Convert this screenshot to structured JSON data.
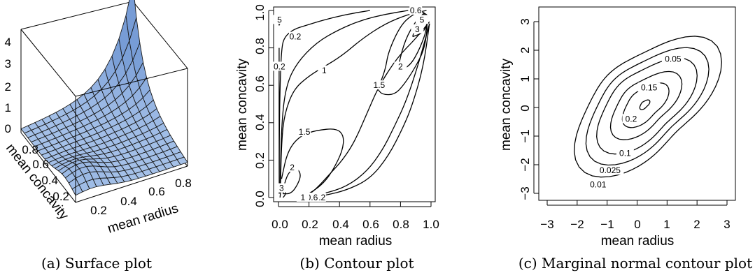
{
  "captions": {
    "a": "(a) Surface plot",
    "b": "(b) Contour plot",
    "c": "(c) Marginal normal contour plot"
  },
  "chart_data": [
    {
      "type": "surface",
      "xlabel": "mean radius",
      "ylabel": "mean concavity",
      "x_ticks": [
        "0.2",
        "0.4",
        "0.6",
        "0.8"
      ],
      "y_ticks": [
        "0.2",
        "0.4",
        "0.6",
        "0.8"
      ],
      "z_ticks": [
        "0",
        "1",
        "2",
        "3",
        "4"
      ],
      "zlim": [
        0,
        4.5
      ],
      "surface_color": "#a9c4ea",
      "edge_color": "#1a1a1a"
    },
    {
      "type": "contour",
      "xlabel": "mean radius",
      "ylabel": "mean concavity",
      "xlim": [
        0,
        1
      ],
      "ylim": [
        0,
        1
      ],
      "x_ticks": [
        "0.0",
        "0.2",
        "0.4",
        "0.6",
        "0.8",
        "1.0"
      ],
      "y_ticks": [
        "0.0",
        "0.2",
        "0.4",
        "0.6",
        "0.8",
        "1.0"
      ],
      "levels": [
        {
          "level": "0.2",
          "points": [
            [
              0.005,
              0.02
            ],
            [
              0.005,
              0.3
            ],
            [
              0.01,
              0.6
            ],
            [
              0.02,
              0.8
            ],
            [
              0.04,
              0.86
            ],
            [
              0.1,
              0.9
            ],
            [
              0.18,
              0.92
            ],
            [
              0.3,
              0.95
            ],
            [
              0.45,
              0.98
            ],
            [
              0.6,
              1.0
            ]
          ],
          "label": "0.2",
          "label_at": [
            0.11,
            0.86
          ]
        },
        {
          "level": "0.2",
          "points": [
            [
              0.005,
              0.04
            ],
            [
              0.004,
              0.3
            ],
            [
              0.004,
              0.6
            ],
            [
              0.004,
              0.8
            ]
          ],
          "label": "0.2",
          "label_at": [
            0.006,
            0.7
          ]
        },
        {
          "level": "0.2",
          "points": [
            [
              0.2,
              0.0
            ],
            [
              0.3,
              0.01
            ],
            [
              0.45,
              0.04
            ],
            [
              0.6,
              0.1
            ],
            [
              0.72,
              0.22
            ],
            [
              0.82,
              0.38
            ],
            [
              0.88,
              0.5
            ],
            [
              0.95,
              0.7
            ],
            [
              0.99,
              0.93
            ]
          ],
          "label": "0.2",
          "label_at": [
            0.27,
            0.0
          ]
        },
        {
          "level": "0.6",
          "points": [
            [
              0.01,
              0.05
            ],
            [
              0.02,
              0.4
            ],
            [
              0.05,
              0.6
            ],
            [
              0.12,
              0.72
            ],
            [
              0.25,
              0.83
            ],
            [
              0.4,
              0.9
            ],
            [
              0.55,
              0.95
            ],
            [
              0.7,
              0.98
            ],
            [
              0.85,
              1.0
            ]
          ],
          "label": "0.6",
          "label_at": [
            0.9,
            1.0
          ]
        },
        {
          "level": "0.6",
          "points": [
            [
              0.16,
              0.0
            ],
            [
              0.3,
              0.02
            ],
            [
              0.45,
              0.06
            ],
            [
              0.58,
              0.14
            ],
            [
              0.68,
              0.25
            ],
            [
              0.76,
              0.38
            ],
            [
              0.84,
              0.52
            ],
            [
              0.92,
              0.72
            ],
            [
              0.99,
              0.93
            ]
          ],
          "label": "0.6",
          "label_at": [
            0.22,
            0.0
          ]
        },
        {
          "level": "1",
          "points": [
            [
              0.013,
              0.06
            ],
            [
              0.02,
              0.3
            ],
            [
              0.04,
              0.45
            ],
            [
              0.1,
              0.58
            ],
            [
              0.2,
              0.65
            ],
            [
              0.3,
              0.7
            ],
            [
              0.42,
              0.76
            ],
            [
              0.55,
              0.85
            ],
            [
              0.7,
              0.93
            ],
            [
              0.85,
              0.98
            ],
            [
              0.97,
              1.0
            ]
          ],
          "label": "1",
          "label_at": [
            0.3,
            0.68
          ]
        },
        {
          "level": "1",
          "points": [
            [
              0.17,
              0.0
            ],
            [
              0.24,
              0.04
            ],
            [
              0.33,
              0.12
            ],
            [
              0.42,
              0.2
            ],
            [
              0.5,
              0.3
            ],
            [
              0.58,
              0.45
            ],
            [
              0.66,
              0.6
            ],
            [
              0.78,
              0.75
            ],
            [
              0.9,
              0.85
            ],
            [
              0.99,
              0.94
            ]
          ],
          "label": "1",
          "label_at": [
            0.16,
            0.0
          ]
        },
        {
          "level": "1.5",
          "points": [
            [
              0.02,
              0.1
            ],
            [
              0.06,
              0.25
            ],
            [
              0.14,
              0.33
            ],
            [
              0.25,
              0.36
            ],
            [
              0.38,
              0.37
            ],
            [
              0.43,
              0.33
            ],
            [
              0.42,
              0.25
            ],
            [
              0.36,
              0.15
            ],
            [
              0.3,
              0.08
            ],
            [
              0.22,
              0.03
            ],
            [
              0.15,
              0.0
            ]
          ],
          "label": "1.5",
          "label_at": [
            0.17,
            0.35
          ]
        },
        {
          "level": "1.5",
          "points": [
            [
              0.65,
              0.58
            ],
            [
              0.7,
              0.68
            ],
            [
              0.72,
              0.78
            ],
            [
              0.8,
              0.92
            ],
            [
              0.88,
              0.98
            ],
            [
              0.95,
              1.0
            ],
            [
              0.98,
              0.95
            ],
            [
              0.96,
              0.8
            ],
            [
              0.9,
              0.7
            ],
            [
              0.82,
              0.6
            ],
            [
              0.76,
              0.55
            ],
            [
              0.68,
              0.55
            ],
            [
              0.65,
              0.58
            ]
          ],
          "label": "1.5",
          "label_at": [
            0.66,
            0.6
          ]
        },
        {
          "level": "2",
          "points": [
            [
              0.03,
              0.02
            ],
            [
              0.04,
              0.08
            ],
            [
              0.07,
              0.14
            ],
            [
              0.12,
              0.16
            ],
            [
              0.15,
              0.12
            ],
            [
              0.12,
              0.06
            ],
            [
              0.08,
              0.02
            ],
            [
              0.03,
              0.02
            ]
          ],
          "label": "2",
          "label_at": [
            0.09,
            0.16
          ]
        },
        {
          "level": "2",
          "points": [
            [
              0.78,
              0.68
            ],
            [
              0.82,
              0.82
            ],
            [
              0.88,
              0.92
            ],
            [
              0.95,
              0.99
            ],
            [
              0.98,
              0.92
            ],
            [
              0.93,
              0.8
            ],
            [
              0.86,
              0.7
            ],
            [
              0.78,
              0.68
            ]
          ],
          "label": "2",
          "label_at": [
            0.8,
            0.7
          ]
        },
        {
          "level": "3",
          "points": [
            [
              0.01,
              0.0
            ],
            [
              0.015,
              0.04
            ],
            [
              0.04,
              0.06
            ],
            [
              0.05,
              0.02
            ],
            [
              0.03,
              0.0
            ]
          ],
          "label": "3",
          "label_at": [
            0.02,
            0.05
          ]
        },
        {
          "level": "3",
          "points": [
            [
              0.88,
              0.86
            ],
            [
              0.9,
              0.93
            ],
            [
              0.95,
              0.99
            ],
            [
              0.985,
              0.95
            ],
            [
              0.95,
              0.88
            ],
            [
              0.88,
              0.86
            ]
          ],
          "label": "3",
          "label_at": [
            0.91,
            0.9
          ]
        },
        {
          "level": "5",
          "points": [
            [
              0.92,
              0.95
            ],
            [
              0.95,
              0.99
            ],
            [
              0.985,
              0.97
            ],
            [
              0.96,
              0.93
            ],
            [
              0.92,
              0.95
            ]
          ],
          "label": "5",
          "label_at": [
            0.94,
            0.95
          ]
        },
        {
          "level": "5",
          "points": [
            [
              0.003,
              0.92
            ],
            [
              0.006,
              0.97
            ],
            [
              0.012,
              0.96
            ],
            [
              0.01,
              0.93
            ],
            [
              0.003,
              0.92
            ]
          ],
          "label": "5",
          "label_at": [
            0.007,
            0.95
          ]
        }
      ]
    },
    {
      "type": "contour",
      "xlabel": "mean radius",
      "ylabel": "mean concavity",
      "xlim": [
        -3.3,
        3.3
      ],
      "ylim": [
        -3.3,
        3.3
      ],
      "x_ticks": [
        "−3",
        "−2",
        "−1",
        "0",
        "1",
        "2",
        "3"
      ],
      "y_ticks": [
        "−3",
        "−2",
        "−1",
        "0",
        "1",
        "2",
        "3"
      ],
      "center": [
        0.25,
        0.1
      ],
      "rho": 0.62,
      "levels": [
        {
          "level": "0.2",
          "label": "0.2",
          "label_at": [
            -0.2,
            -0.4
          ]
        },
        {
          "level": "0.15",
          "label": "0.15",
          "label_at": [
            0.4,
            0.7
          ]
        },
        {
          "level": "0.1",
          "label": "0.1",
          "label_at": [
            -0.4,
            -1.6
          ]
        },
        {
          "level": "0.05",
          "label": "0.05",
          "label_at": [
            1.2,
            1.7
          ]
        },
        {
          "level": "0.025",
          "label": "0.025",
          "label_at": [
            -0.9,
            -2.2
          ]
        },
        {
          "level": "0.01",
          "label": "0.01",
          "label_at": [
            -1.3,
            -2.7
          ]
        }
      ]
    }
  ]
}
